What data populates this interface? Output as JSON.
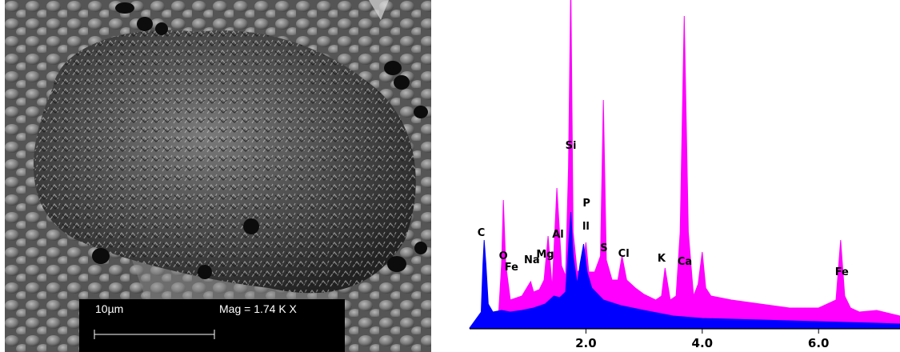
{
  "sem": {
    "scale_label": "10µm",
    "mag_label": "Mag =  1.74 K X"
  },
  "chart_data": {
    "type": "area",
    "title": "",
    "xlabel": "",
    "ylabel": "",
    "xlim": [
      0.0,
      7.4
    ],
    "x_ticks": [
      2.0,
      4.0,
      6.0
    ],
    "x_tick_labels": [
      "2.0",
      "4.0",
      "6.0"
    ],
    "legend": "none",
    "grid": false,
    "series": [
      {
        "color": "#ff00ff",
        "x": [
          0.0,
          0.3,
          0.5,
          0.55,
          0.58,
          0.62,
          0.7,
          0.9,
          1.05,
          1.1,
          1.2,
          1.28,
          1.35,
          1.42,
          1.5,
          1.58,
          1.65,
          1.7,
          1.74,
          1.78,
          1.85,
          1.95,
          2.0,
          2.05,
          2.15,
          2.25,
          2.3,
          2.35,
          2.45,
          2.55,
          2.62,
          2.7,
          2.85,
          3.0,
          3.2,
          3.3,
          3.36,
          3.45,
          3.55,
          3.62,
          3.69,
          3.76,
          3.85,
          3.93,
          4.0,
          4.06,
          4.15,
          4.5,
          5.0,
          5.5,
          6.0,
          6.3,
          6.38,
          6.45,
          6.55,
          6.7,
          7.0,
          7.4
        ],
        "y": [
          0,
          10,
          20,
          80,
          160,
          80,
          35,
          40,
          58,
          45,
          48,
          60,
          115,
          50,
          175,
          78,
          65,
          200,
          435,
          120,
          70,
          75,
          107,
          70,
          70,
          90,
          285,
          85,
          60,
          60,
          90,
          60,
          50,
          42,
          35,
          40,
          75,
          35,
          40,
          120,
          390,
          120,
          40,
          55,
          95,
          50,
          40,
          35,
          30,
          25,
          25,
          35,
          110,
          40,
          25,
          20,
          22,
          15
        ]
      },
      {
        "color": "#0000ff",
        "x": [
          0.0,
          0.2,
          0.23,
          0.25,
          0.28,
          0.32,
          0.4,
          0.55,
          0.7,
          0.9,
          1.1,
          1.3,
          1.45,
          1.55,
          1.65,
          1.7,
          1.74,
          1.78,
          1.85,
          1.9,
          1.96,
          2.02,
          2.1,
          2.3,
          2.6,
          3.0,
          3.5,
          4.0,
          5.0,
          6.0,
          7.0,
          7.4
        ],
        "y": [
          0,
          20,
          80,
          110,
          80,
          30,
          20,
          22,
          20,
          22,
          25,
          30,
          40,
          38,
          45,
          100,
          145,
          90,
          55,
          80,
          105,
          70,
          50,
          35,
          28,
          22,
          15,
          12,
          10,
          8,
          6,
          5
        ]
      }
    ],
    "annotations": [
      {
        "label": "C",
        "x": 0.2,
        "y": 115
      },
      {
        "label": "O",
        "x": 0.58,
        "y": 86
      },
      {
        "label": "Fe",
        "x": 0.72,
        "y": 72
      },
      {
        "label": "Na",
        "x": 1.07,
        "y": 81
      },
      {
        "label": "Mg",
        "x": 1.3,
        "y": 88
      },
      {
        "label": "Al",
        "x": 1.52,
        "y": 113
      },
      {
        "label": "Si",
        "x": 1.74,
        "y": 224
      },
      {
        "label": "P",
        "x": 2.01,
        "y": 152
      },
      {
        "label": "ll",
        "x": 2.0,
        "y": 123
      },
      {
        "label": "S",
        "x": 2.31,
        "y": 96
      },
      {
        "label": "Cl",
        "x": 2.65,
        "y": 89
      },
      {
        "label": "K",
        "x": 3.3,
        "y": 83
      },
      {
        "label": "Ca",
        "x": 3.7,
        "y": 79
      },
      {
        "label": "Fe",
        "x": 6.4,
        "y": 66
      }
    ]
  }
}
